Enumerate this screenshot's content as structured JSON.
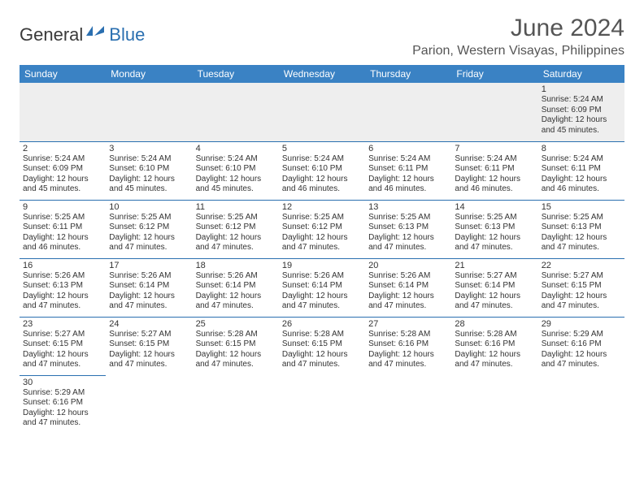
{
  "brand": {
    "part1": "General",
    "part2": "Blue"
  },
  "title": "June 2024",
  "location": "Parion, Western Visayas, Philippines",
  "colors": {
    "header_bg": "#3a82c4",
    "header_text": "#ffffff",
    "border": "#2a6fb0",
    "logo_blue": "#2a6fb0",
    "text": "#333333",
    "shade": "#eeeeee"
  },
  "dayHeaders": [
    "Sunday",
    "Monday",
    "Tuesday",
    "Wednesday",
    "Thursday",
    "Friday",
    "Saturday"
  ],
  "weeks": [
    [
      null,
      null,
      null,
      null,
      null,
      null,
      {
        "n": "1",
        "sr": "Sunrise: 5:24 AM",
        "ss": "Sunset: 6:09 PM",
        "d1": "Daylight: 12 hours",
        "d2": "and 45 minutes."
      }
    ],
    [
      {
        "n": "2",
        "sr": "Sunrise: 5:24 AM",
        "ss": "Sunset: 6:09 PM",
        "d1": "Daylight: 12 hours",
        "d2": "and 45 minutes."
      },
      {
        "n": "3",
        "sr": "Sunrise: 5:24 AM",
        "ss": "Sunset: 6:10 PM",
        "d1": "Daylight: 12 hours",
        "d2": "and 45 minutes."
      },
      {
        "n": "4",
        "sr": "Sunrise: 5:24 AM",
        "ss": "Sunset: 6:10 PM",
        "d1": "Daylight: 12 hours",
        "d2": "and 45 minutes."
      },
      {
        "n": "5",
        "sr": "Sunrise: 5:24 AM",
        "ss": "Sunset: 6:10 PM",
        "d1": "Daylight: 12 hours",
        "d2": "and 46 minutes."
      },
      {
        "n": "6",
        "sr": "Sunrise: 5:24 AM",
        "ss": "Sunset: 6:11 PM",
        "d1": "Daylight: 12 hours",
        "d2": "and 46 minutes."
      },
      {
        "n": "7",
        "sr": "Sunrise: 5:24 AM",
        "ss": "Sunset: 6:11 PM",
        "d1": "Daylight: 12 hours",
        "d2": "and 46 minutes."
      },
      {
        "n": "8",
        "sr": "Sunrise: 5:24 AM",
        "ss": "Sunset: 6:11 PM",
        "d1": "Daylight: 12 hours",
        "d2": "and 46 minutes."
      }
    ],
    [
      {
        "n": "9",
        "sr": "Sunrise: 5:25 AM",
        "ss": "Sunset: 6:11 PM",
        "d1": "Daylight: 12 hours",
        "d2": "and 46 minutes."
      },
      {
        "n": "10",
        "sr": "Sunrise: 5:25 AM",
        "ss": "Sunset: 6:12 PM",
        "d1": "Daylight: 12 hours",
        "d2": "and 47 minutes."
      },
      {
        "n": "11",
        "sr": "Sunrise: 5:25 AM",
        "ss": "Sunset: 6:12 PM",
        "d1": "Daylight: 12 hours",
        "d2": "and 47 minutes."
      },
      {
        "n": "12",
        "sr": "Sunrise: 5:25 AM",
        "ss": "Sunset: 6:12 PM",
        "d1": "Daylight: 12 hours",
        "d2": "and 47 minutes."
      },
      {
        "n": "13",
        "sr": "Sunrise: 5:25 AM",
        "ss": "Sunset: 6:13 PM",
        "d1": "Daylight: 12 hours",
        "d2": "and 47 minutes."
      },
      {
        "n": "14",
        "sr": "Sunrise: 5:25 AM",
        "ss": "Sunset: 6:13 PM",
        "d1": "Daylight: 12 hours",
        "d2": "and 47 minutes."
      },
      {
        "n": "15",
        "sr": "Sunrise: 5:25 AM",
        "ss": "Sunset: 6:13 PM",
        "d1": "Daylight: 12 hours",
        "d2": "and 47 minutes."
      }
    ],
    [
      {
        "n": "16",
        "sr": "Sunrise: 5:26 AM",
        "ss": "Sunset: 6:13 PM",
        "d1": "Daylight: 12 hours",
        "d2": "and 47 minutes."
      },
      {
        "n": "17",
        "sr": "Sunrise: 5:26 AM",
        "ss": "Sunset: 6:14 PM",
        "d1": "Daylight: 12 hours",
        "d2": "and 47 minutes."
      },
      {
        "n": "18",
        "sr": "Sunrise: 5:26 AM",
        "ss": "Sunset: 6:14 PM",
        "d1": "Daylight: 12 hours",
        "d2": "and 47 minutes."
      },
      {
        "n": "19",
        "sr": "Sunrise: 5:26 AM",
        "ss": "Sunset: 6:14 PM",
        "d1": "Daylight: 12 hours",
        "d2": "and 47 minutes."
      },
      {
        "n": "20",
        "sr": "Sunrise: 5:26 AM",
        "ss": "Sunset: 6:14 PM",
        "d1": "Daylight: 12 hours",
        "d2": "and 47 minutes."
      },
      {
        "n": "21",
        "sr": "Sunrise: 5:27 AM",
        "ss": "Sunset: 6:14 PM",
        "d1": "Daylight: 12 hours",
        "d2": "and 47 minutes."
      },
      {
        "n": "22",
        "sr": "Sunrise: 5:27 AM",
        "ss": "Sunset: 6:15 PM",
        "d1": "Daylight: 12 hours",
        "d2": "and 47 minutes."
      }
    ],
    [
      {
        "n": "23",
        "sr": "Sunrise: 5:27 AM",
        "ss": "Sunset: 6:15 PM",
        "d1": "Daylight: 12 hours",
        "d2": "and 47 minutes."
      },
      {
        "n": "24",
        "sr": "Sunrise: 5:27 AM",
        "ss": "Sunset: 6:15 PM",
        "d1": "Daylight: 12 hours",
        "d2": "and 47 minutes."
      },
      {
        "n": "25",
        "sr": "Sunrise: 5:28 AM",
        "ss": "Sunset: 6:15 PM",
        "d1": "Daylight: 12 hours",
        "d2": "and 47 minutes."
      },
      {
        "n": "26",
        "sr": "Sunrise: 5:28 AM",
        "ss": "Sunset: 6:15 PM",
        "d1": "Daylight: 12 hours",
        "d2": "and 47 minutes."
      },
      {
        "n": "27",
        "sr": "Sunrise: 5:28 AM",
        "ss": "Sunset: 6:16 PM",
        "d1": "Daylight: 12 hours",
        "d2": "and 47 minutes."
      },
      {
        "n": "28",
        "sr": "Sunrise: 5:28 AM",
        "ss": "Sunset: 6:16 PM",
        "d1": "Daylight: 12 hours",
        "d2": "and 47 minutes."
      },
      {
        "n": "29",
        "sr": "Sunrise: 5:29 AM",
        "ss": "Sunset: 6:16 PM",
        "d1": "Daylight: 12 hours",
        "d2": "and 47 minutes."
      }
    ],
    [
      {
        "n": "30",
        "sr": "Sunrise: 5:29 AM",
        "ss": "Sunset: 6:16 PM",
        "d1": "Daylight: 12 hours",
        "d2": "and 47 minutes."
      },
      null,
      null,
      null,
      null,
      null,
      null
    ]
  ]
}
